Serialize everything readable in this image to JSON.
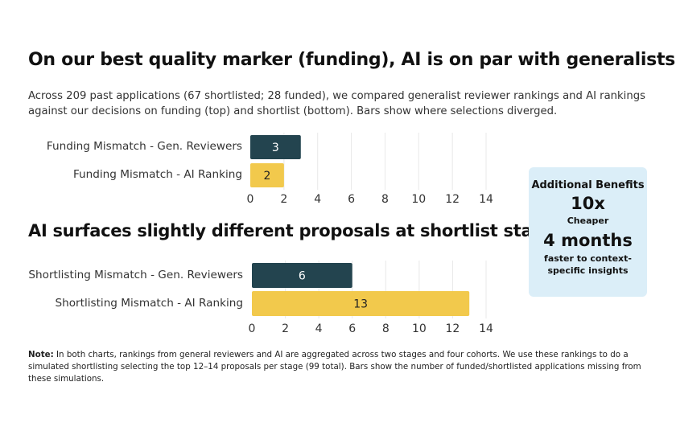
{
  "title": "On our best quality marker (funding), AI is on par with generalists",
  "subtitle": "Across 209 past applications (67 shortlisted; 28 funded), we compared generalist reviewer rankings and AI rankings against our decisions on funding (top) and shortlist (bottom). Bars show where selections diverged.",
  "title2": "AI surfaces slightly different proposals at shortlist stage",
  "colors": {
    "generalist": "#23444f",
    "ai": "#f2c94c",
    "grid": "#e8e8e8"
  },
  "chart_data": [
    {
      "type": "bar",
      "orientation": "horizontal",
      "categories": [
        "Funding Mismatch - Gen. Reviewers",
        "Funding Mismatch - AI Ranking"
      ],
      "values": [
        3,
        2
      ],
      "xlim": [
        0,
        14
      ],
      "ticks": [
        "0",
        "2",
        "4",
        "6",
        "8",
        "10",
        "12",
        "14"
      ],
      "grid": true
    },
    {
      "type": "bar",
      "orientation": "horizontal",
      "categories": [
        "Shortlisting Mismatch - Gen. Reviewers",
        "Shortlisting Mismatch - AI Ranking"
      ],
      "values": [
        6,
        13
      ],
      "xlim": [
        0,
        14
      ],
      "ticks": [
        "0",
        "2",
        "4",
        "6",
        "8",
        "10",
        "12",
        "14"
      ],
      "grid": true
    }
  ],
  "benefits": {
    "heading": "Additional Benefits",
    "stat1": "10x",
    "stat1_label": "Cheaper",
    "stat2": "4 months",
    "stat2_label": "faster to context-specific insights"
  },
  "note": {
    "bold": "Note:",
    "text": " In both charts, rankings from general reviewers and AI are aggregated across two stages and four cohorts. We use these rankings to do a simulated shortlisting selecting the top 12–14 proposals per stage (99 total). Bars show the number of funded/shortlisted applications missing from these simulations."
  }
}
